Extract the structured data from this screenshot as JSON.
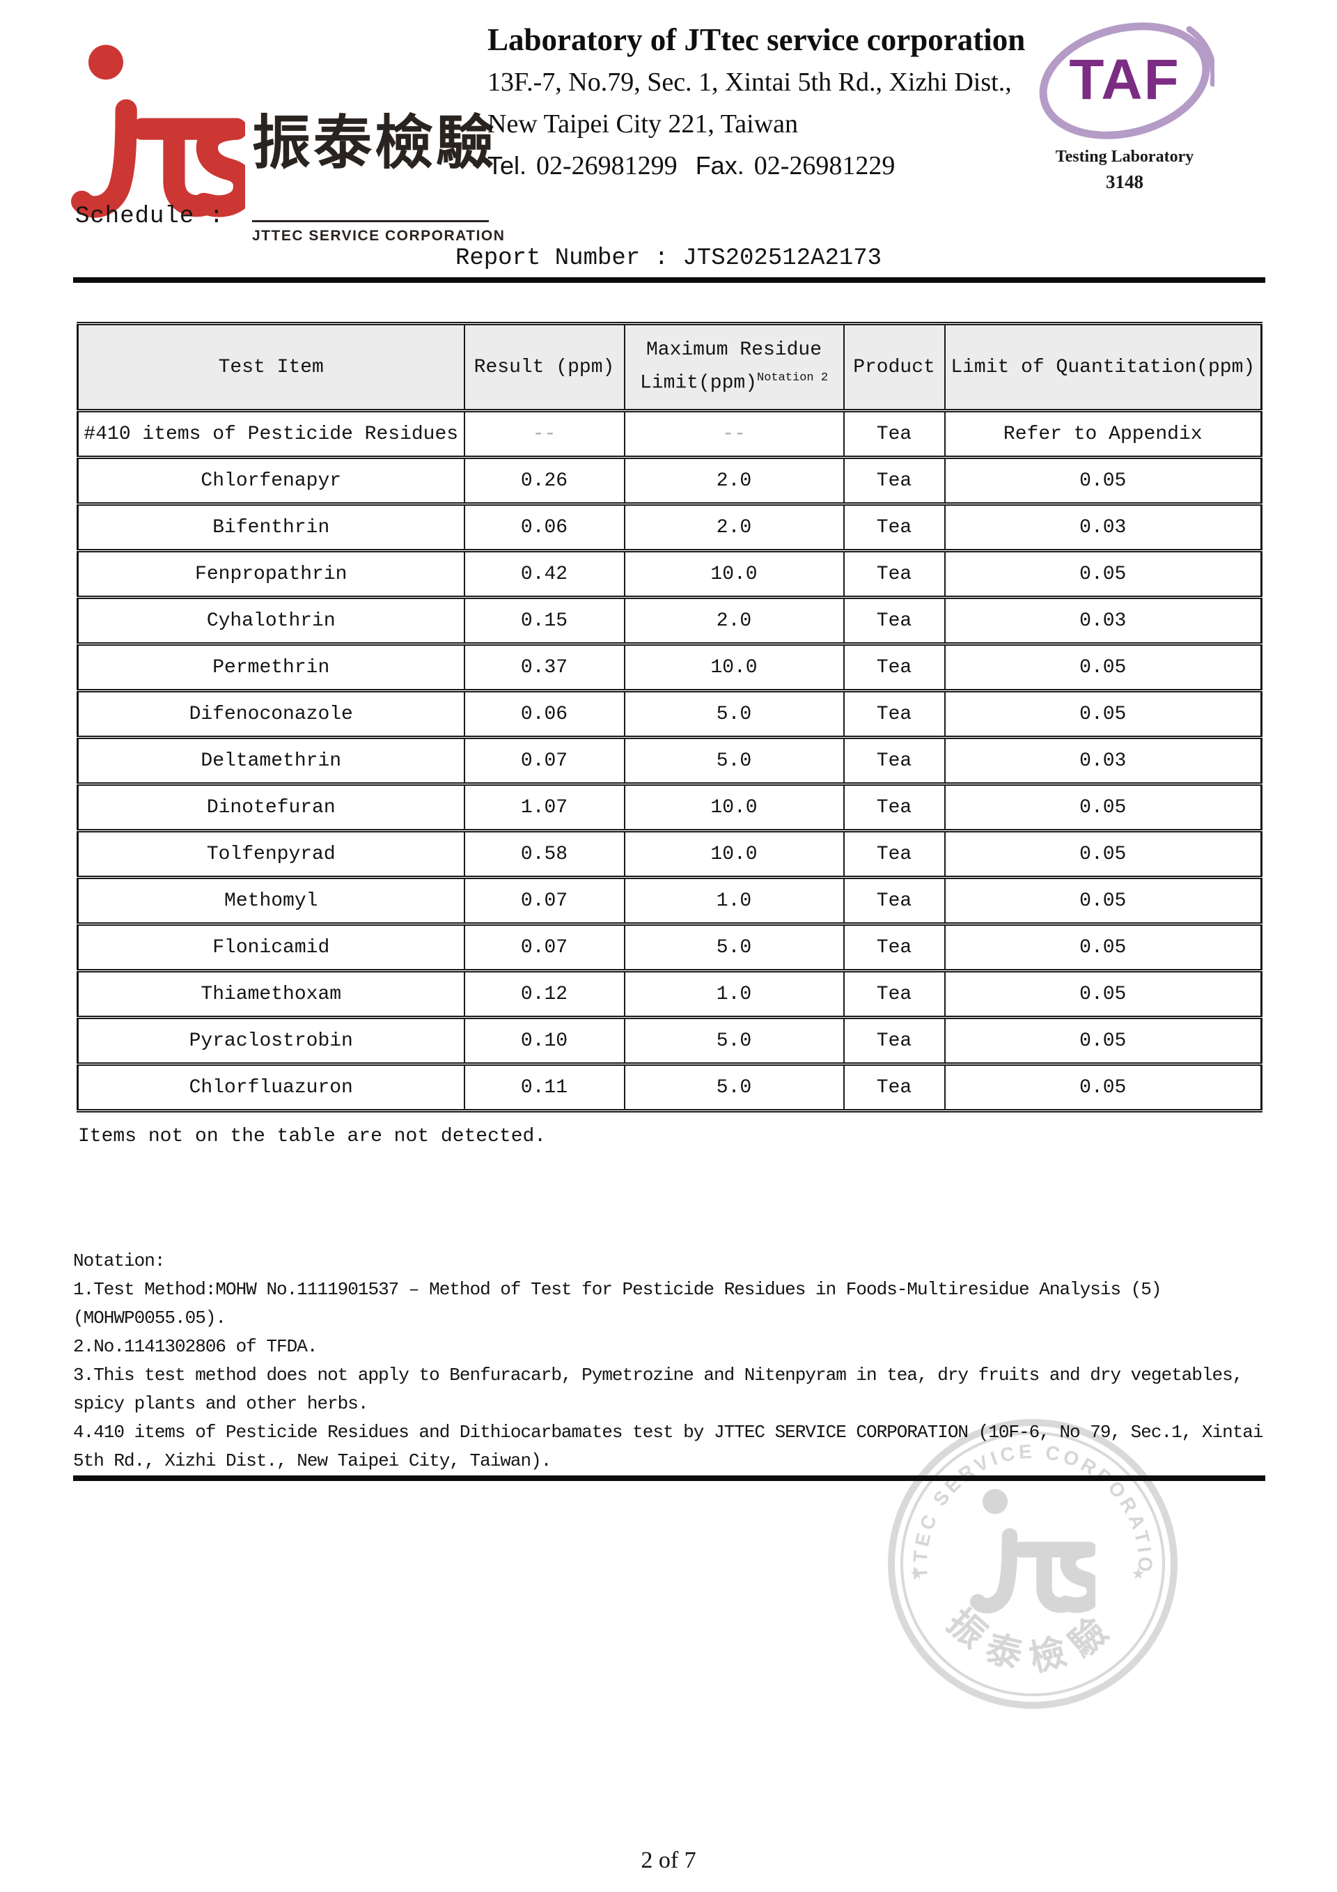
{
  "header": {
    "logo": {
      "jts_text": "JTS",
      "chinese": "振泰檢驗",
      "caption": "JTTEC SERVICE CORPORATION",
      "red": "#cc3733"
    },
    "lab": {
      "name": "Laboratory of JTtec service corporation",
      "address_line1": "13F.-7, No.79, Sec. 1, Xintai 5th Rd., Xizhi Dist.,",
      "address_line2": "New Taipei City 221, Taiwan",
      "tel_label": "Tel.",
      "tel_number": "02-26981299",
      "fax_label": "Fax.",
      "fax_number": "02-26981229"
    },
    "taf": {
      "acronym": "TAF",
      "label": "Testing Laboratory",
      "number": "3148",
      "purple": "#7b2c83",
      "light_purple": "#b49cc7"
    }
  },
  "schedule_label": "Schedule :",
  "report": {
    "label": "Report Number :",
    "number": "JTS202512A2173"
  },
  "table": {
    "header": {
      "col1": "Test Item",
      "col2": "Result (ppm)",
      "col3_line1": "Maximum Residue",
      "col3_line2": "Limit(ppm)",
      "col3_sup": "Notation 2",
      "col4": "Product",
      "col5": "Limit of Quantitation(ppm)"
    },
    "rows": [
      [
        "#410 items of Pesticide Residues",
        "--",
        "--",
        "Tea",
        "Refer to Appendix"
      ],
      [
        "Chlorfenapyr",
        "0.26",
        "2.0",
        "Tea",
        "0.05"
      ],
      [
        "Bifenthrin",
        "0.06",
        "2.0",
        "Tea",
        "0.03"
      ],
      [
        "Fenpropathrin",
        "0.42",
        "10.0",
        "Tea",
        "0.05"
      ],
      [
        "Cyhalothrin",
        "0.15",
        "2.0",
        "Tea",
        "0.03"
      ],
      [
        "Permethrin",
        "0.37",
        "10.0",
        "Tea",
        "0.05"
      ],
      [
        "Difenoconazole",
        "0.06",
        "5.0",
        "Tea",
        "0.05"
      ],
      [
        "Deltamethrin",
        "0.07",
        "5.0",
        "Tea",
        "0.03"
      ],
      [
        "Dinotefuran",
        "1.07",
        "10.0",
        "Tea",
        "0.05"
      ],
      [
        "Tolfenpyrad",
        "0.58",
        "10.0",
        "Tea",
        "0.05"
      ],
      [
        "Methomyl",
        "0.07",
        "1.0",
        "Tea",
        "0.05"
      ],
      [
        "Flonicamid",
        "0.07",
        "5.0",
        "Tea",
        "0.05"
      ],
      [
        "Thiamethoxam",
        "0.12",
        "1.0",
        "Tea",
        "0.05"
      ],
      [
        "Pyraclostrobin",
        "0.10",
        "5.0",
        "Tea",
        "0.05"
      ],
      [
        "Chlorfluazuron",
        "0.11",
        "5.0",
        "Tea",
        "0.05"
      ]
    ]
  },
  "table_note": "Items not on the table are not detected.",
  "notation": {
    "title": "Notation:",
    "lines": [
      "1.Test Method:MOHW No.1111901537 – Method of Test for Pesticide Residues in Foods-Multiresidue Analysis (5)",
      "(MOHWP0055.05).",
      "2.No.1141302806 of TFDA.",
      "3.This test method does not apply to Benfuracarb, Pymetrozine and Nitenpyram in tea, dry fruits and dry vegetables,",
      "spicy plants and other herbs.",
      "4.410 items of Pesticide Residues and Dithiocarbamates test by JTTEC SERVICE CORPORATION (10F-6, No 79, Sec.1, Xintai",
      "5th Rd., Xizhi Dist., New Taipei City, Taiwan)."
    ]
  },
  "watermark": {
    "arc_text": "JTTEC SERVICE CORPORATION",
    "center_text": "JTS",
    "bottom_text": "振泰檢驗",
    "star": "★",
    "gray": "#d8d8d8"
  },
  "footer": {
    "page": "2 of 7"
  }
}
